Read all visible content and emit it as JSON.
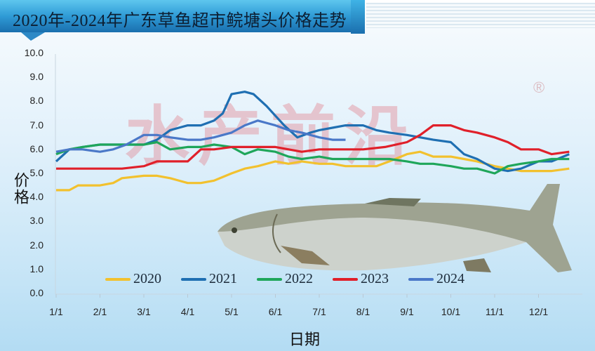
{
  "header": {
    "title": "2020年-2024年广东草鱼超市鲩塘头价格走势"
  },
  "watermark": {
    "text": "水产前沿",
    "mark": "®"
  },
  "axes": {
    "y_title": "价格",
    "x_title": "日期",
    "y_ticks": [
      "10.0",
      "9.0",
      "8.0",
      "7.0",
      "6.0",
      "5.0",
      "4.0",
      "3.0",
      "2.0",
      "1.0",
      "0.0"
    ],
    "x_ticks": [
      "1/1",
      "2/1",
      "3/1",
      "4/1",
      "5/1",
      "6/1",
      "7/1",
      "8/1",
      "9/1",
      "10/1",
      "11/1",
      "12/1"
    ]
  },
  "legend": [
    {
      "label": "2020",
      "color": "#f2c12e"
    },
    {
      "label": "2021",
      "color": "#1f6fb2"
    },
    {
      "label": "2022",
      "color": "#1fa65a"
    },
    {
      "label": "2023",
      "color": "#e0202a"
    },
    {
      "label": "2024",
      "color": "#4a78c8"
    }
  ],
  "chart_data": {
    "type": "line",
    "title": "2020年-2024年广东草鱼超市鲩塘头价格走势",
    "xlabel": "日期",
    "ylabel": "价格",
    "ylim": [
      0,
      10
    ],
    "y_tick_step": 1,
    "grid": false,
    "legend_position": "bottom-inside",
    "x_unit": "month offset from 1/1 (0 = 1/1, 11 = 12/1)",
    "categories": [
      "1/1",
      "2/1",
      "3/1",
      "4/1",
      "5/1",
      "6/1",
      "7/1",
      "8/1",
      "9/1",
      "10/1",
      "11/1",
      "12/1"
    ],
    "series": [
      {
        "name": "2020",
        "color": "#f2c12e",
        "x": [
          0,
          0.3,
          0.5,
          1,
          1.3,
          1.5,
          2,
          2.3,
          2.6,
          3,
          3.3,
          3.6,
          4,
          4.3,
          4.6,
          5,
          5.3,
          5.6,
          6,
          6.3,
          6.6,
          7,
          7.3,
          7.6,
          8,
          8.3,
          8.6,
          9,
          9.3,
          9.6,
          10,
          10.3,
          10.6,
          11,
          11.3,
          11.7
        ],
        "values": [
          4.3,
          4.3,
          4.5,
          4.5,
          4.6,
          4.8,
          4.9,
          4.9,
          4.8,
          4.6,
          4.6,
          4.7,
          5.0,
          5.2,
          5.3,
          5.5,
          5.4,
          5.5,
          5.4,
          5.4,
          5.3,
          5.3,
          5.3,
          5.5,
          5.8,
          5.9,
          5.7,
          5.7,
          5.6,
          5.5,
          5.3,
          5.2,
          5.1,
          5.1,
          5.1,
          5.2
        ]
      },
      {
        "name": "2021",
        "color": "#1f6fb2",
        "x": [
          0,
          0.3,
          0.6,
          1,
          1.3,
          1.6,
          2,
          2.3,
          2.6,
          3,
          3.3,
          3.6,
          3.8,
          4,
          4.3,
          4.5,
          4.8,
          5,
          5.2,
          5.5,
          5.8,
          6,
          6.3,
          6.6,
          7,
          7.3,
          7.6,
          8,
          8.3,
          8.6,
          9,
          9.3,
          9.6,
          10,
          10.3,
          10.6,
          11,
          11.3,
          11.7
        ],
        "values": [
          5.5,
          6.0,
          6.1,
          6.2,
          6.2,
          6.2,
          6.2,
          6.4,
          6.8,
          7.0,
          7.0,
          7.2,
          7.5,
          8.3,
          8.4,
          8.3,
          7.8,
          7.4,
          7.0,
          6.5,
          6.7,
          6.8,
          6.9,
          7.0,
          7.0,
          6.8,
          6.7,
          6.6,
          6.5,
          6.4,
          6.3,
          5.8,
          5.6,
          5.2,
          5.1,
          5.2,
          5.5,
          5.5,
          5.8
        ]
      },
      {
        "name": "2022",
        "color": "#1fa65a",
        "x": [
          0,
          0.3,
          0.6,
          1,
          1.3,
          1.6,
          2,
          2.3,
          2.6,
          3,
          3.3,
          3.6,
          4,
          4.3,
          4.6,
          5,
          5.3,
          5.6,
          6,
          6.3,
          6.6,
          7,
          7.3,
          7.6,
          8,
          8.3,
          8.6,
          9,
          9.3,
          9.6,
          10,
          10.3,
          10.6,
          11,
          11.3,
          11.7
        ],
        "values": [
          5.8,
          6.0,
          6.1,
          6.2,
          6.2,
          6.2,
          6.2,
          6.3,
          6.0,
          6.1,
          6.1,
          6.2,
          6.1,
          5.8,
          6.0,
          5.9,
          5.7,
          5.6,
          5.7,
          5.6,
          5.6,
          5.6,
          5.6,
          5.6,
          5.5,
          5.4,
          5.4,
          5.3,
          5.2,
          5.2,
          5.0,
          5.3,
          5.4,
          5.5,
          5.6,
          5.6
        ]
      },
      {
        "name": "2023",
        "color": "#e0202a",
        "x": [
          0,
          0.5,
          1,
          1.5,
          2,
          2.3,
          2.6,
          3,
          3.3,
          3.6,
          4,
          4.5,
          5,
          5.3,
          5.6,
          6,
          6.5,
          7,
          7.5,
          8,
          8.3,
          8.6,
          9,
          9.3,
          9.6,
          10,
          10.3,
          10.6,
          11,
          11.3,
          11.7
        ],
        "values": [
          5.2,
          5.2,
          5.2,
          5.2,
          5.3,
          5.5,
          5.5,
          5.5,
          6.0,
          6.0,
          6.1,
          6.1,
          6.1,
          6.0,
          5.9,
          6.0,
          6.0,
          6.0,
          6.1,
          6.3,
          6.6,
          7.0,
          7.0,
          6.8,
          6.7,
          6.5,
          6.3,
          6.0,
          6.0,
          5.8,
          5.9
        ]
      },
      {
        "name": "2024",
        "color": "#4a78c8",
        "x": [
          0,
          0.3,
          0.6,
          1,
          1.3,
          1.6,
          2,
          2.3,
          2.6,
          3,
          3.3,
          3.6,
          4,
          4.3,
          4.6,
          5,
          5.3,
          5.6,
          6,
          6.3,
          6.6
        ],
        "values": [
          5.9,
          6.0,
          6.0,
          5.9,
          6.0,
          6.2,
          6.6,
          6.6,
          6.5,
          6.4,
          6.4,
          6.5,
          6.7,
          7.0,
          7.2,
          7.0,
          6.8,
          6.7,
          6.5,
          6.4,
          6.4
        ]
      }
    ]
  }
}
